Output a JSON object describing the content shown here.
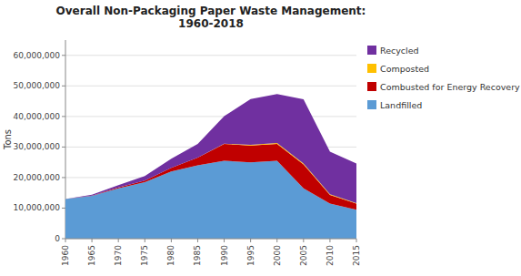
{
  "chart_data": {
    "type": "area",
    "stacked": true,
    "title": "Overall Non-Packaging Paper Waste Management:\n1960-2018",
    "y_label": "Tons",
    "x": [
      1960,
      1965,
      1970,
      1975,
      1980,
      1985,
      1990,
      1995,
      2000,
      2005,
      2010,
      2015
    ],
    "xlim": [
      1960,
      2015
    ],
    "xticks": [
      1960,
      1965,
      1970,
      1975,
      1980,
      1985,
      1990,
      1995,
      2000,
      2005,
      2010,
      2015
    ],
    "ylim": [
      0,
      65000000
    ],
    "yticks": [
      0,
      {
        "value": 10000000,
        "label": "10,000,000"
      },
      {
        "value": 20000000,
        "label": "20,000,000"
      },
      {
        "value": 30000000,
        "label": "30,000,000"
      },
      {
        "value": 40000000,
        "label": "40,000,000"
      },
      {
        "value": 50000000,
        "label": "50,000,000"
      },
      {
        "value": 60000000,
        "label": "60,000,000"
      }
    ],
    "grid": true,
    "legend": "right",
    "series": [
      {
        "name": "Landfilled",
        "color": "#5B9BD5",
        "values": [
          13000000,
          14000000,
          16500000,
          18500000,
          22000000,
          24000000,
          25500000,
          25000000,
          25500000,
          16500000,
          11500000,
          9500000
        ]
      },
      {
        "name": "Combusted for Energy Recovery",
        "color": "#C00000",
        "values": [
          0,
          100000,
          300000,
          500000,
          1200000,
          2500000,
          5500000,
          5500000,
          5500000,
          7800000,
          2800000,
          2000000
        ]
      },
      {
        "name": "Composted",
        "color": "#FFC000",
        "values": [
          0,
          0,
          0,
          0,
          0,
          0,
          100000,
          200000,
          300000,
          300000,
          200000,
          100000
        ]
      },
      {
        "name": "Recycled",
        "color": "#7030A0",
        "values": [
          0,
          300000,
          700000,
          1500000,
          3000000,
          4500000,
          9000000,
          15000000,
          16000000,
          21000000,
          14000000,
          13000000
        ]
      }
    ]
  }
}
